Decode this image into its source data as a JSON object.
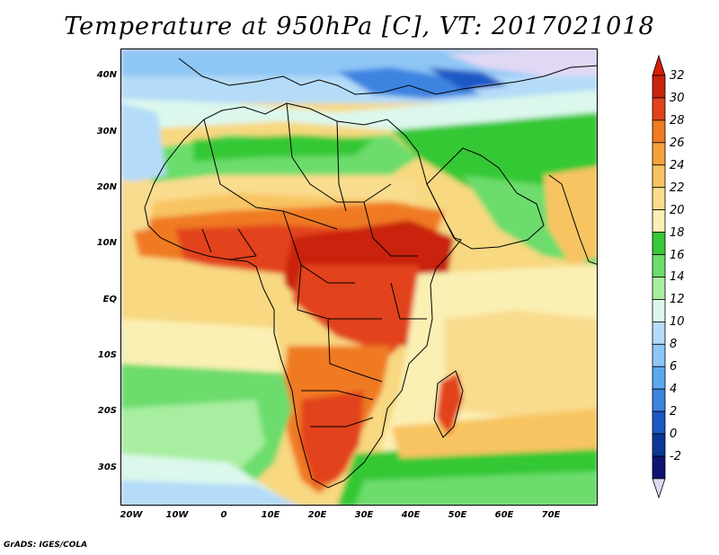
{
  "title": "Temperature at 950hPa [C], VT: 2017021018",
  "credit": "GrADS: IGES/COLA",
  "map": {
    "lat_labels": [
      "40N",
      "30N",
      "20N",
      "10N",
      "EQ",
      "10S",
      "20S",
      "30S"
    ],
    "lon_labels": [
      "20W",
      "10W",
      "0",
      "10E",
      "20E",
      "30E",
      "40E",
      "50E",
      "60E",
      "70E"
    ],
    "lon_range": [
      -22,
      80
    ],
    "lat_range": [
      -37,
      45
    ]
  },
  "colorbar": {
    "labels": [
      "32",
      "30",
      "28",
      "26",
      "24",
      "22",
      "20",
      "18",
      "16",
      "14",
      "12",
      "10",
      "8",
      "6",
      "4",
      "2",
      "0",
      "-2"
    ],
    "colors": [
      "#c9240c",
      "#e2421a",
      "#f07a22",
      "#f6a23a",
      "#f8c462",
      "#fadc8e",
      "#faf0b4",
      "#36c836",
      "#6cdc6c",
      "#a8eea0",
      "#dcf8ec",
      "#b4dcf8",
      "#8ec6f6",
      "#5ca8ee",
      "#3c84e0",
      "#1c58c4",
      "#0a3896",
      "#101470"
    ],
    "top_arrow_color": "#d61e0a",
    "bottom_arrow_color": "#e0d8f4"
  }
}
